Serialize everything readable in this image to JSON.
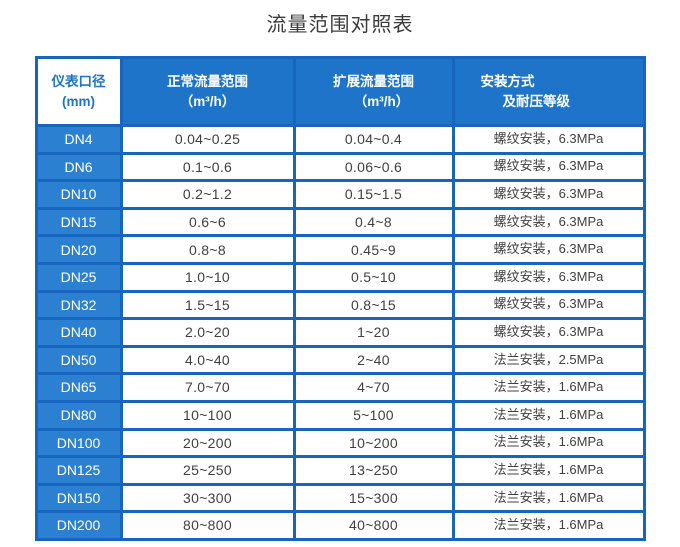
{
  "title": "流量范围对照表",
  "colors": {
    "frame_blue": "#1765bf",
    "header_blue": "#1e74c9",
    "row_label_blue": "#2c80d2",
    "header_inverse_bg": "#ffffff",
    "value_text": "#404040",
    "title_text": "#3c3c3c"
  },
  "table": {
    "headers": [
      {
        "line1": "仪表口径",
        "line2": "(mm)"
      },
      {
        "line1": "正常流量范围",
        "line2": "（m³/h）"
      },
      {
        "line1": "扩展流量范围",
        "line2": "（m³/h）"
      },
      {
        "line1": "安装方式",
        "line2": "及耐压等级"
      }
    ],
    "rows": [
      {
        "dn": "DN4",
        "normal": "0.04~0.25",
        "extended": "0.04~0.4",
        "install": "螺纹安装，6.3MPa"
      },
      {
        "dn": "DN6",
        "normal": "0.1~0.6",
        "extended": "0.06~0.6",
        "install": "螺纹安装，6.3MPa"
      },
      {
        "dn": "DN10",
        "normal": "0.2~1.2",
        "extended": "0.15~1.5",
        "install": "螺纹安装，6.3MPa"
      },
      {
        "dn": "DN15",
        "normal": "0.6~6",
        "extended": "0.4~8",
        "install": "螺纹安装，6.3MPa"
      },
      {
        "dn": "DN20",
        "normal": "0.8~8",
        "extended": "0.45~9",
        "install": "螺纹安装，6.3MPa"
      },
      {
        "dn": "DN25",
        "normal": "1.0~10",
        "extended": "0.5~10",
        "install": "螺纹安装，6.3MPa"
      },
      {
        "dn": "DN32",
        "normal": "1.5~15",
        "extended": "0.8~15",
        "install": "螺纹安装，6.3MPa"
      },
      {
        "dn": "DN40",
        "normal": "2.0~20",
        "extended": "1~20",
        "install": "螺纹安装，6.3MPa"
      },
      {
        "dn": "DN50",
        "normal": "4.0~40",
        "extended": "2~40",
        "install": "法兰安装，2.5MPa"
      },
      {
        "dn": "DN65",
        "normal": "7.0~70",
        "extended": "4~70",
        "install": "法兰安装，1.6MPa"
      },
      {
        "dn": "DN80",
        "normal": "10~100",
        "extended": "5~100",
        "install": "法兰安装，1.6MPa"
      },
      {
        "dn": "DN100",
        "normal": "20~200",
        "extended": "10~200",
        "install": "法兰安装，1.6MPa"
      },
      {
        "dn": "DN125",
        "normal": "25~250",
        "extended": "13~250",
        "install": "法兰安装，1.6MPa"
      },
      {
        "dn": "DN150",
        "normal": "30~300",
        "extended": "15~300",
        "install": "法兰安装，1.6MPa"
      },
      {
        "dn": "DN200",
        "normal": "80~800",
        "extended": "40~800",
        "install": "法兰安装，1.6MPa"
      }
    ]
  }
}
